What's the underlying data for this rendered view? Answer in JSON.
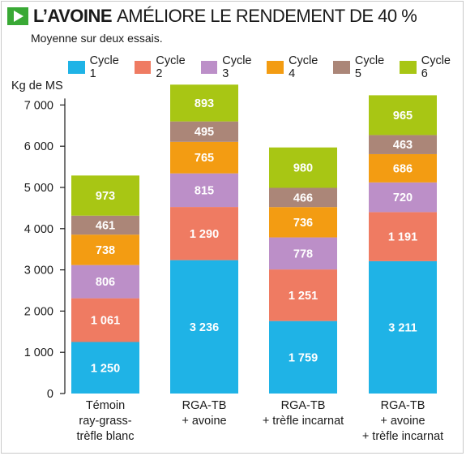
{
  "header": {
    "icon": "play-triangle-icon",
    "title_bold": "L’AVOINE",
    "title_rest": "AMÉLIORE LE RENDEMENT DE 40 %",
    "subtitle": "Moyenne sur deux essais."
  },
  "chart_data": {
    "type": "bar",
    "stacked": true,
    "ylabel": "Kg de MS",
    "ylim": [
      0,
      7000
    ],
    "yticks": [
      0,
      1000,
      2000,
      3000,
      4000,
      5000,
      6000,
      7000
    ],
    "ytick_labels": [
      "0",
      "1 000",
      "2 000",
      "3 000",
      "4 000",
      "5 000",
      "6 000",
      "7 000"
    ],
    "categories": [
      [
        "Témoin",
        "ray-grass-",
        "trèfle blanc"
      ],
      [
        "RGA-TB",
        "+ avoine"
      ],
      [
        "RGA-TB",
        "+ trèfle incarnat"
      ],
      [
        "RGA-TB",
        "+ avoine",
        "+ trèfle incarnat"
      ]
    ],
    "series": [
      {
        "name": "Cycle 1",
        "color": "#1fb3e6",
        "values": [
          1250,
          3236,
          1759,
          3211
        ],
        "labels": [
          "1 250",
          "3 236",
          "1 759",
          "3 211"
        ]
      },
      {
        "name": "Cycle 2",
        "color": "#ef7b62",
        "values": [
          1061,
          1290,
          1251,
          1191
        ],
        "labels": [
          "1 061",
          "1 290",
          "1 251",
          "1 191"
        ]
      },
      {
        "name": "Cycle 3",
        "color": "#bc8fc8",
        "values": [
          806,
          815,
          778,
          720
        ],
        "labels": [
          "806",
          "815",
          "778",
          "720"
        ]
      },
      {
        "name": "Cycle 4",
        "color": "#f39c12",
        "values": [
          738,
          765,
          736,
          686
        ],
        "labels": [
          "738",
          "765",
          "736",
          "686"
        ]
      },
      {
        "name": "Cycle 5",
        "color": "#ab8678",
        "values": [
          461,
          495,
          466,
          463
        ],
        "labels": [
          "461",
          "495",
          "466",
          "463"
        ]
      },
      {
        "name": "Cycle 6",
        "color": "#a8c614",
        "values": [
          973,
          893,
          980,
          965
        ],
        "labels": [
          "973",
          "893",
          "980",
          "965"
        ]
      }
    ],
    "legend_position": "top",
    "grid": false
  }
}
